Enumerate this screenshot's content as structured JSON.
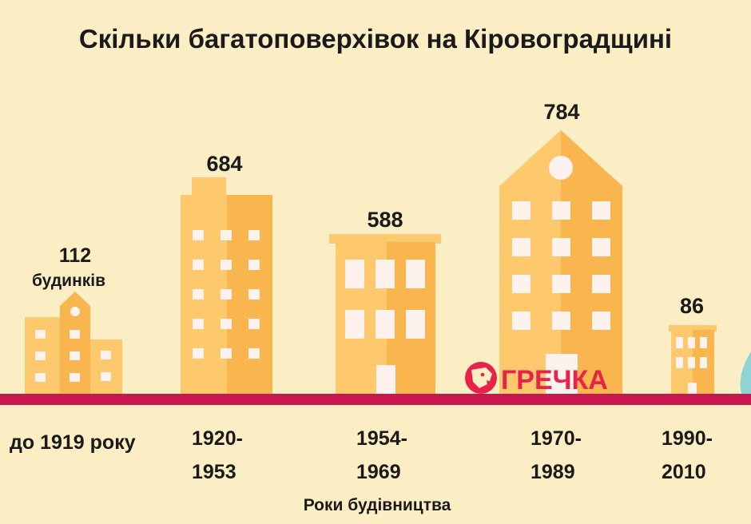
{
  "colors": {
    "background": "#fbedc4",
    "building_light": "#fdc96c",
    "building_dark": "#f9b54e",
    "window": "#fdf2ee",
    "ground": "#c8174f",
    "logo_red": "#e8234a",
    "side_accent": "#8fd3d6"
  },
  "brand": {
    "name": "ГРЕЧКА"
  },
  "chart_data": {
    "type": "bar",
    "title": "Скільки багатоповерхівок на Кіровоградщині",
    "xlabel": "Роки будівництва",
    "ylabel": "",
    "value_unit_label": "будинків",
    "categories": [
      [
        "до 1919 року"
      ],
      [
        "1920-",
        "1953"
      ],
      [
        "1954-",
        "1969"
      ],
      [
        "1970-",
        "1989"
      ],
      [
        "1990-",
        "2010"
      ]
    ],
    "values": [
      112,
      684,
      588,
      784,
      86
    ],
    "ylim": [
      0,
      784
    ],
    "grid": false,
    "legend": "none"
  }
}
